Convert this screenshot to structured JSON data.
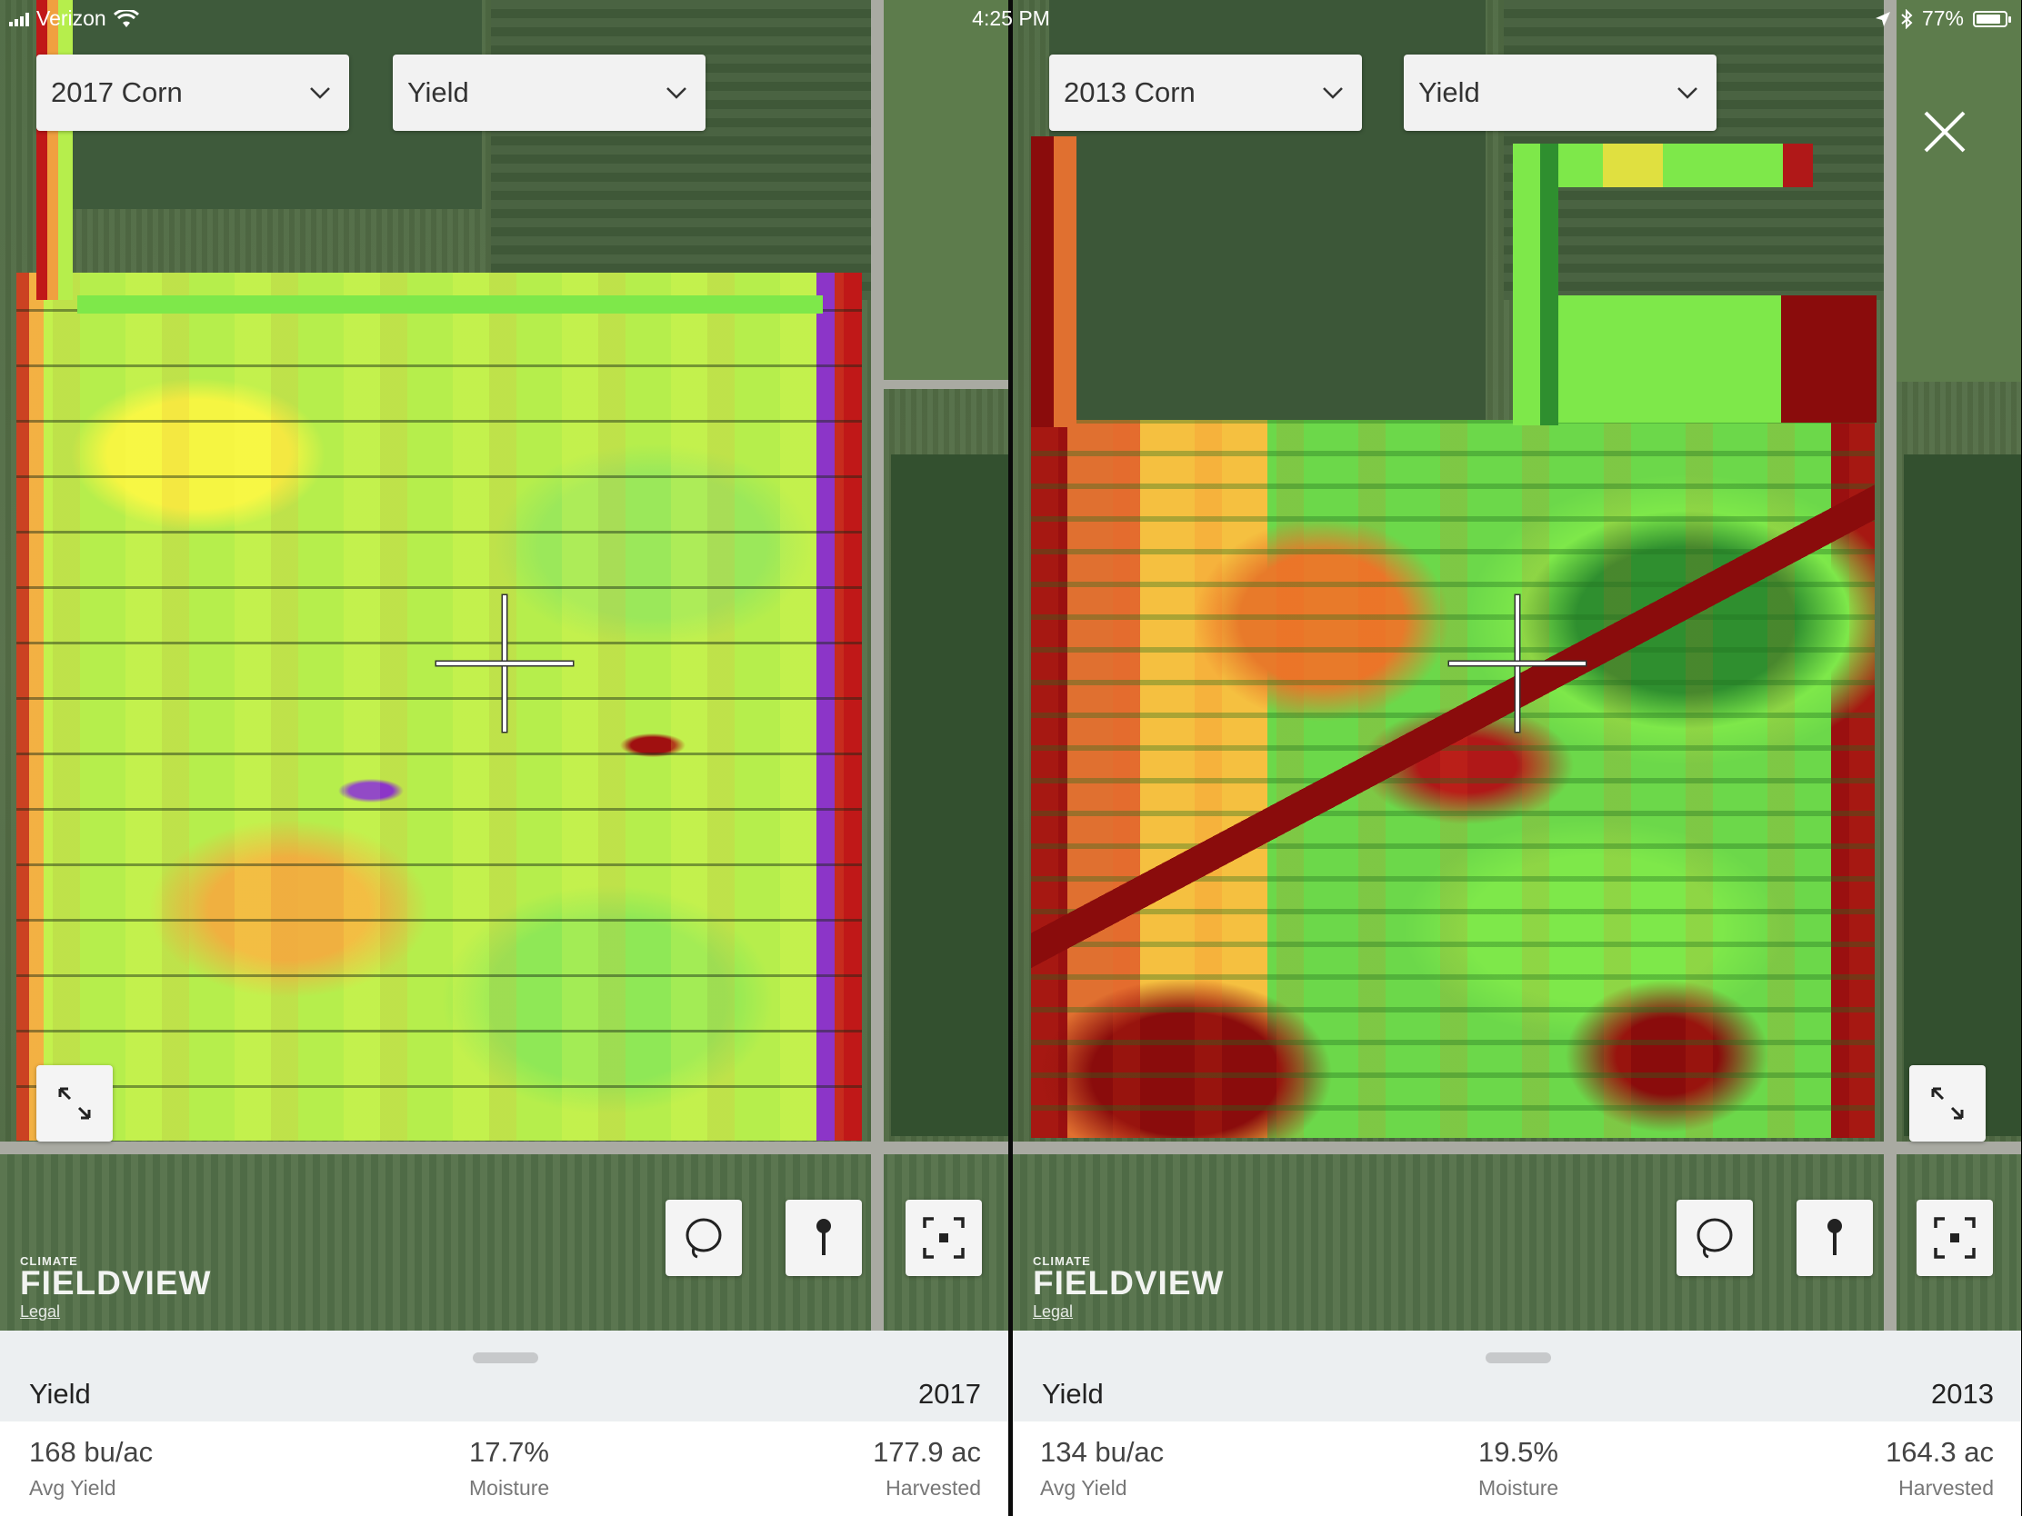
{
  "status_bar": {
    "carrier": "Verizon",
    "time": "4:25 PM",
    "battery": "77%"
  },
  "left_pane": {
    "season_dropdown": "2017 Corn",
    "layer_dropdown": "Yield",
    "logo": {
      "small": "CLIMATE",
      "big": "FIELDVIEW",
      "legal": "Legal"
    },
    "sheet": {
      "title": "Yield",
      "year": "2017",
      "stats": [
        {
          "value": "168 bu/ac",
          "label": "Avg Yield"
        },
        {
          "value": "17.7%",
          "label": "Moisture"
        },
        {
          "value": "177.9 ac",
          "label": "Harvested"
        }
      ]
    }
  },
  "right_pane": {
    "season_dropdown": "2013 Corn",
    "layer_dropdown": "Yield",
    "logo": {
      "small": "CLIMATE",
      "big": "FIELDVIEW",
      "legal": "Legal"
    },
    "sheet": {
      "title": "Yield",
      "year": "2013",
      "stats": [
        {
          "value": "134 bu/ac",
          "label": "Avg Yield"
        },
        {
          "value": "19.5%",
          "label": "Moisture"
        },
        {
          "value": "164.3 ac",
          "label": "Harvested"
        }
      ]
    }
  },
  "icons": {
    "signal": "signal-bars-icon",
    "wifi": "wifi-icon",
    "location": "location-arrow-icon",
    "bluetooth": "bluetooth-icon",
    "battery": "battery-icon",
    "close": "close-icon",
    "expand": "expand-arrows-icon",
    "lasso": "lasso-icon",
    "pin": "map-pin-icon",
    "locate": "locate-focus-icon",
    "chevron": "chevron-down-icon"
  },
  "colors": {
    "high_yield": "#2f8f2f",
    "good_yield": "#7ee84a",
    "mid_yield": "#f5f542",
    "low_yield": "#f0a040",
    "poor_yield": "#a01010",
    "outlier": "#7a22e0",
    "sheet_header_bg": "#eceff1"
  }
}
